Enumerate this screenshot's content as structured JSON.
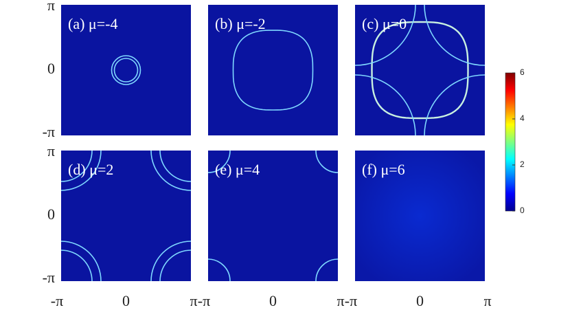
{
  "panels": [
    {
      "label": "(a) μ=-4"
    },
    {
      "label": "(b) μ=-2"
    },
    {
      "label": "(c) μ=0"
    },
    {
      "label": "(d) μ=2"
    },
    {
      "label": "(e) μ=4"
    },
    {
      "label": "(f) μ=6"
    }
  ],
  "y_tick_labels": [
    "π",
    "0",
    "-π"
  ],
  "x_tick_labels": [
    "-π",
    "0",
    "π"
  ],
  "colorbar": {
    "range": [
      0,
      6
    ],
    "ticks": [
      0,
      2,
      4,
      6
    ]
  }
}
